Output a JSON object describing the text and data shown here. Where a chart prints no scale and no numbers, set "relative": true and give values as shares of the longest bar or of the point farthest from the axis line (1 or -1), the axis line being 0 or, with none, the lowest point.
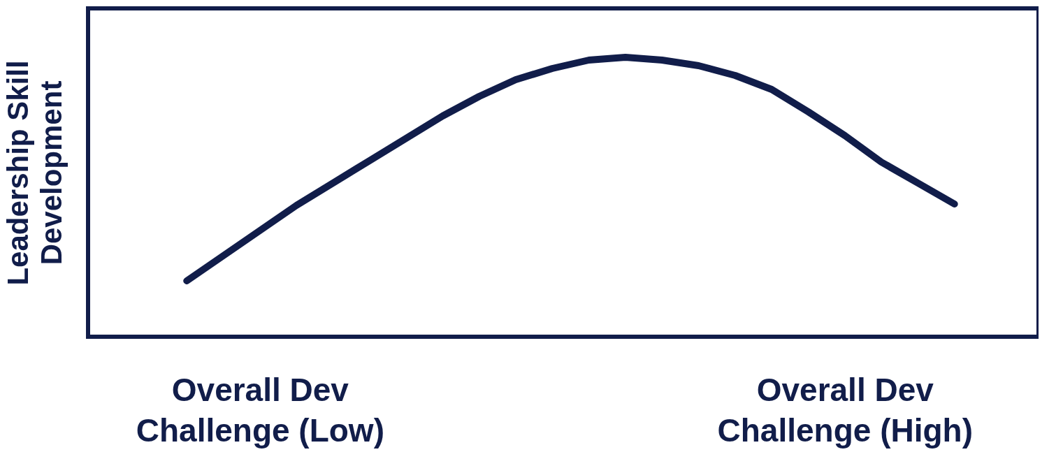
{
  "chart_data": {
    "type": "line",
    "relative": true,
    "ylabel": "Leadership Skill\nDevelopment",
    "categories": [
      null,
      null,
      "Overall Dev\nChallenge (Low)",
      null,
      null,
      null,
      null,
      null,
      null,
      null,
      null,
      null,
      null,
      null,
      null,
      null,
      null,
      null,
      "Overall Dev\nChallenge (High)",
      null,
      null,
      null
    ],
    "series": [
      {
        "color": "#111d4a",
        "values": [
          0.2,
          0.29,
          0.38,
          0.47,
          0.55,
          0.63,
          0.71,
          0.79,
          0.86,
          0.92,
          0.96,
          0.99,
          1.0,
          0.99,
          0.97,
          0.935,
          0.885,
          0.805,
          0.72,
          0.625,
          0.55,
          0.475
        ]
      }
    ],
    "grid": false,
    "line_style": "solid"
  }
}
